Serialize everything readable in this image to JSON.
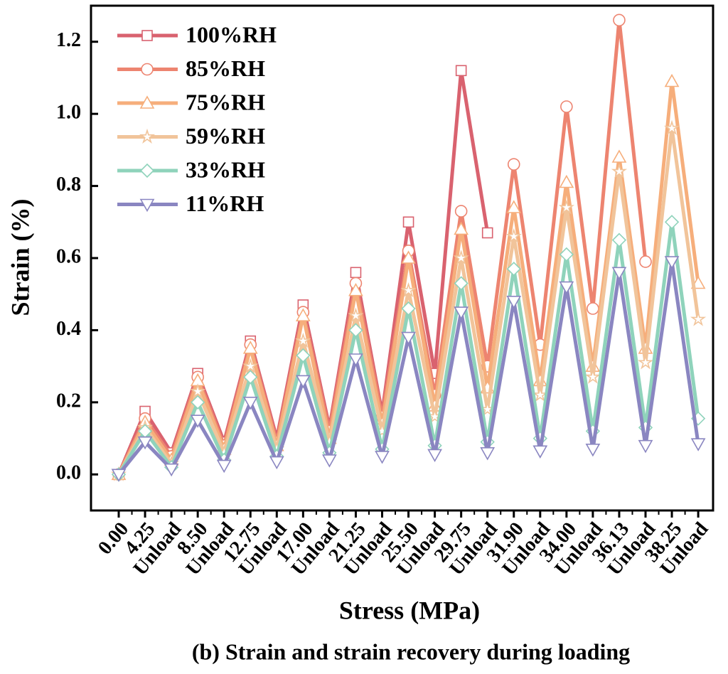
{
  "chart_data": {
    "type": "line",
    "caption": "(b) Strain and strain recovery during loading",
    "xlabel": "Stress (MPa)",
    "ylabel": "Strain (%)",
    "categories": [
      "0.00",
      "4.25",
      "Unload",
      "8.50",
      "Unload",
      "12.75",
      "Unload",
      "17.00",
      "Unload",
      "21.25",
      "Unload",
      "25.50",
      "Unload",
      "29.75",
      "Unload",
      "31.90",
      "Unload",
      "34.00",
      "Unload",
      "36.13",
      "Unload",
      "38.25",
      "Unload"
    ],
    "ylim": [
      -0.1,
      1.3
    ],
    "yticks": [
      {
        "value": 0,
        "label": "0.0"
      },
      0.2,
      0.4,
      0.6,
      0.8,
      {
        "value": 1,
        "label": "1.0"
      },
      1.2
    ],
    "legend": "upper left",
    "series": [
      {
        "name": "100%RH",
        "color": "#d9626f",
        "marker": "square",
        "values": [
          0,
          0.175,
          0.06,
          0.28,
          0.09,
          0.37,
          0.1,
          0.47,
          0.13,
          0.56,
          0.17,
          0.7,
          0.28,
          1.12,
          0.67,
          null,
          null,
          null,
          null,
          null,
          null,
          null,
          null
        ]
      },
      {
        "name": "85%RH",
        "color": "#ed8470",
        "marker": "circle",
        "values": [
          0,
          0.155,
          0.05,
          0.27,
          0.08,
          0.36,
          0.09,
          0.45,
          0.12,
          0.53,
          0.16,
          0.62,
          0.22,
          0.73,
          0.3,
          0.86,
          0.36,
          1.02,
          0.46,
          1.26,
          0.59,
          null,
          null
        ]
      },
      {
        "name": "75%RH",
        "color": "#f6ae7b",
        "marker": "triangle-up",
        "values": [
          0,
          0.145,
          0.04,
          0.26,
          0.07,
          0.35,
          0.08,
          0.44,
          0.1,
          0.51,
          0.14,
          0.6,
          0.19,
          0.68,
          0.24,
          0.74,
          0.26,
          0.81,
          0.3,
          0.88,
          0.35,
          1.09,
          0.53
        ]
      },
      {
        "name": "59%RH",
        "color": "#f1c49a",
        "marker": "star",
        "values": [
          0,
          0.13,
          0.03,
          0.23,
          0.06,
          0.3,
          0.07,
          0.37,
          0.09,
          0.44,
          0.12,
          0.51,
          0.16,
          0.6,
          0.18,
          0.66,
          0.22,
          0.74,
          0.27,
          0.84,
          0.31,
          0.96,
          0.43
        ]
      },
      {
        "name": "33%RH",
        "color": "#8fd3bb",
        "marker": "diamond",
        "values": [
          0,
          0.12,
          0.02,
          0.2,
          0.04,
          0.27,
          0.05,
          0.33,
          0.06,
          0.4,
          0.07,
          0.46,
          0.08,
          0.53,
          0.09,
          0.57,
          0.1,
          0.61,
          0.12,
          0.65,
          0.13,
          0.7,
          0.155
        ]
      },
      {
        "name": "11%RH",
        "color": "#8a86c1",
        "marker": "triangle-down",
        "values": [
          0,
          0.09,
          0.015,
          0.15,
          0.025,
          0.2,
          0.035,
          0.26,
          0.04,
          0.32,
          0.05,
          0.38,
          0.055,
          0.45,
          0.06,
          0.48,
          0.065,
          0.52,
          0.07,
          0.56,
          0.08,
          0.59,
          0.085
        ]
      }
    ]
  }
}
